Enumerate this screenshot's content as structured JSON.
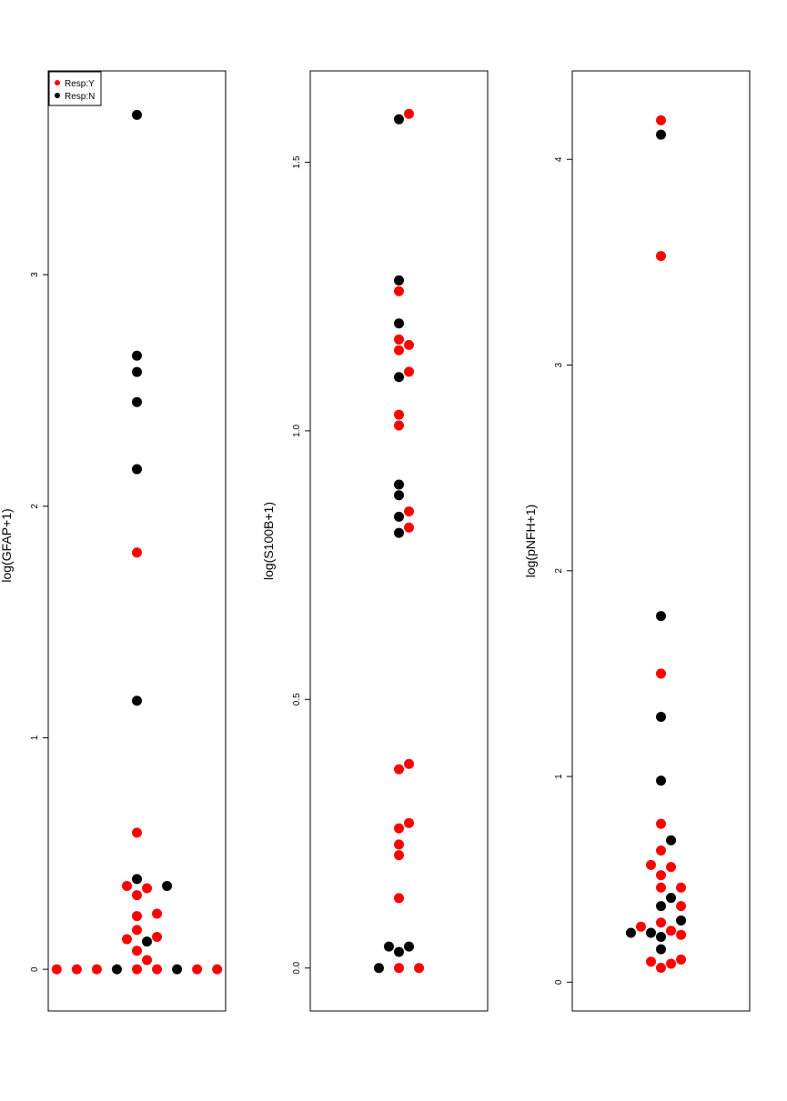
{
  "colors": {
    "Y": "#ff0000",
    "N": "#000000",
    "frame": "#000000"
  },
  "legend": {
    "placement": "top-left",
    "entries": [
      {
        "key": "Y",
        "label": "Resp:Y"
      },
      {
        "key": "N",
        "label": "Resp:N"
      }
    ]
  },
  "chart_data": [
    {
      "type": "scatter",
      "subtype": "beeswarm",
      "ylabel": "log(GFAP+1)",
      "ylim": [
        -0.18,
        3.88
      ],
      "yticks": [
        0,
        1,
        2,
        3
      ],
      "ytick_labels": [
        "0",
        "1",
        "2",
        "3"
      ],
      "grid": false,
      "legend": true,
      "points": [
        {
          "y": 3.69,
          "g": "N"
        },
        {
          "y": 2.65,
          "g": "N"
        },
        {
          "y": 2.58,
          "g": "N"
        },
        {
          "y": 2.45,
          "g": "N"
        },
        {
          "y": 2.16,
          "g": "N"
        },
        {
          "y": 1.8,
          "g": "Y"
        },
        {
          "y": 1.16,
          "g": "N"
        },
        {
          "y": 0.59,
          "g": "Y"
        },
        {
          "y": 0.39,
          "g": "N"
        },
        {
          "y": 0.36,
          "g": "Y"
        },
        {
          "y": 0.36,
          "g": "N"
        },
        {
          "y": 0.35,
          "g": "Y"
        },
        {
          "y": 0.32,
          "g": "Y"
        },
        {
          "y": 0.24,
          "g": "Y"
        },
        {
          "y": 0.23,
          "g": "Y"
        },
        {
          "y": 0.17,
          "g": "Y"
        },
        {
          "y": 0.14,
          "g": "Y"
        },
        {
          "y": 0.13,
          "g": "Y"
        },
        {
          "y": 0.12,
          "g": "N"
        },
        {
          "y": 0.08,
          "g": "Y"
        },
        {
          "y": 0.04,
          "g": "Y"
        },
        {
          "y": 0,
          "g": "Y"
        },
        {
          "y": 0,
          "g": "Y"
        },
        {
          "y": 0,
          "g": "N"
        },
        {
          "y": 0,
          "g": "N"
        },
        {
          "y": 0,
          "g": "Y"
        },
        {
          "y": 0,
          "g": "Y"
        },
        {
          "y": 0,
          "g": "Y"
        },
        {
          "y": 0,
          "g": "Y"
        },
        {
          "y": 0,
          "g": "Y"
        }
      ]
    },
    {
      "type": "scatter",
      "subtype": "beeswarm",
      "ylabel": "log(S100B+1)",
      "ylim": [
        -0.08,
        1.67
      ],
      "yticks": [
        0,
        0.5,
        1.0,
        1.5
      ],
      "ytick_labels": [
        "0.0",
        "0.5",
        "1.0",
        "1.5"
      ],
      "grid": false,
      "legend": false,
      "points": [
        {
          "y": 1.59,
          "g": "Y"
        },
        {
          "y": 1.58,
          "g": "N"
        },
        {
          "y": 1.28,
          "g": "N"
        },
        {
          "y": 1.26,
          "g": "Y"
        },
        {
          "y": 1.2,
          "g": "N"
        },
        {
          "y": 1.17,
          "g": "Y"
        },
        {
          "y": 1.16,
          "g": "Y"
        },
        {
          "y": 1.15,
          "g": "Y"
        },
        {
          "y": 1.11,
          "g": "Y"
        },
        {
          "y": 1.1,
          "g": "N"
        },
        {
          "y": 1.03,
          "g": "Y"
        },
        {
          "y": 1.01,
          "g": "Y"
        },
        {
          "y": 0.9,
          "g": "N"
        },
        {
          "y": 0.88,
          "g": "N"
        },
        {
          "y": 0.85,
          "g": "Y"
        },
        {
          "y": 0.84,
          "g": "N"
        },
        {
          "y": 0.82,
          "g": "Y"
        },
        {
          "y": 0.81,
          "g": "N"
        },
        {
          "y": 0.38,
          "g": "Y"
        },
        {
          "y": 0.37,
          "g": "Y"
        },
        {
          "y": 0.27,
          "g": "Y"
        },
        {
          "y": 0.26,
          "g": "Y"
        },
        {
          "y": 0.23,
          "g": "Y"
        },
        {
          "y": 0.21,
          "g": "Y"
        },
        {
          "y": 0.13,
          "g": "Y"
        },
        {
          "y": 0.04,
          "g": "N"
        },
        {
          "y": 0.04,
          "g": "N"
        },
        {
          "y": 0.03,
          "g": "N"
        },
        {
          "y": 0,
          "g": "Y"
        },
        {
          "y": 0,
          "g": "Y"
        },
        {
          "y": 0,
          "g": "N"
        }
      ]
    },
    {
      "type": "scatter",
      "subtype": "beeswarm",
      "ylabel": "log(pNFH+1)",
      "ylim": [
        -0.14,
        4.43
      ],
      "yticks": [
        0,
        1,
        2,
        3,
        4
      ],
      "ytick_labels": [
        "0",
        "1",
        "2",
        "3",
        "4"
      ],
      "grid": false,
      "legend": false,
      "points": [
        {
          "y": 4.19,
          "g": "Y"
        },
        {
          "y": 4.12,
          "g": "N"
        },
        {
          "y": 3.53,
          "g": "Y"
        },
        {
          "y": 1.78,
          "g": "N"
        },
        {
          "y": 1.5,
          "g": "Y"
        },
        {
          "y": 1.29,
          "g": "N"
        },
        {
          "y": 0.98,
          "g": "N"
        },
        {
          "y": 0.77,
          "g": "Y"
        },
        {
          "y": 0.69,
          "g": "N"
        },
        {
          "y": 0.64,
          "g": "Y"
        },
        {
          "y": 0.57,
          "g": "Y"
        },
        {
          "y": 0.56,
          "g": "Y"
        },
        {
          "y": 0.52,
          "g": "Y"
        },
        {
          "y": 0.46,
          "g": "Y"
        },
        {
          "y": 0.46,
          "g": "Y"
        },
        {
          "y": 0.41,
          "g": "N"
        },
        {
          "y": 0.37,
          "g": "N"
        },
        {
          "y": 0.37,
          "g": "Y"
        },
        {
          "y": 0.3,
          "g": "N"
        },
        {
          "y": 0.29,
          "g": "Y"
        },
        {
          "y": 0.27,
          "g": "Y"
        },
        {
          "y": 0.25,
          "g": "Y"
        },
        {
          "y": 0.24,
          "g": "N"
        },
        {
          "y": 0.24,
          "g": "N"
        },
        {
          "y": 0.23,
          "g": "Y"
        },
        {
          "y": 0.22,
          "g": "N"
        },
        {
          "y": 0.16,
          "g": "N"
        },
        {
          "y": 0.11,
          "g": "Y"
        },
        {
          "y": 0.1,
          "g": "Y"
        },
        {
          "y": 0.09,
          "g": "Y"
        },
        {
          "y": 0.07,
          "g": "Y"
        }
      ]
    }
  ]
}
